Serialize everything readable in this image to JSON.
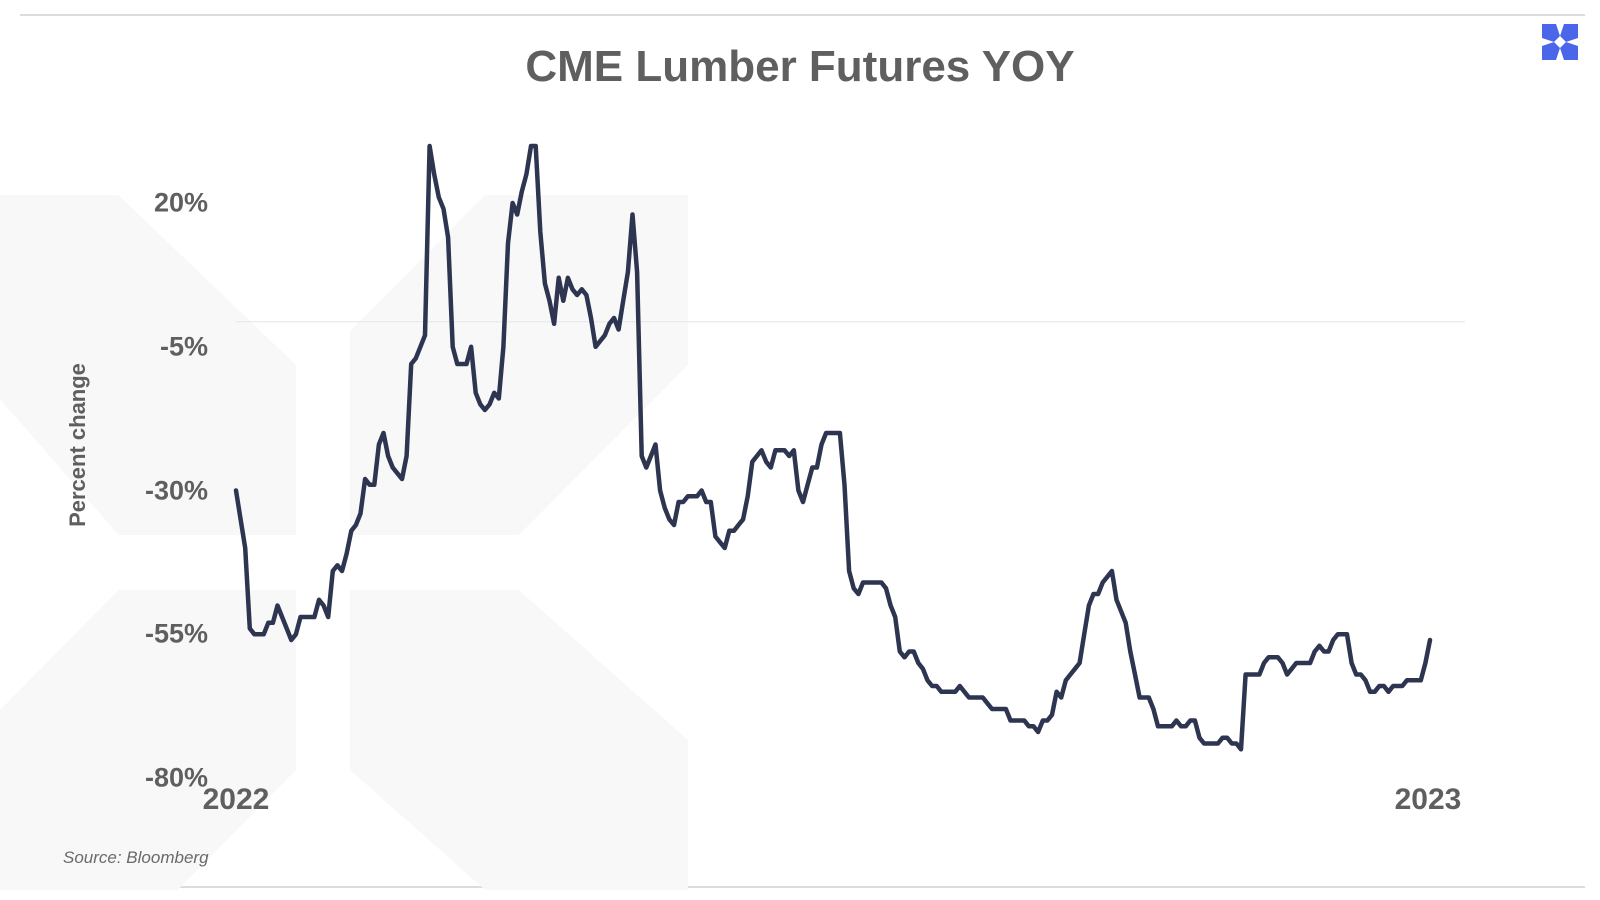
{
  "chart_data": {
    "type": "line",
    "title": "CME Lumber Futures YOY",
    "ylabel": "Percent change",
    "xlabel": "",
    "ylim": [
      -80,
      20
    ],
    "yticks": [
      20,
      -5,
      -30,
      -55,
      -80
    ],
    "ytick_labels": [
      "20%",
      "-5%",
      "-30%",
      "-55%",
      "-80%"
    ],
    "xticks": [
      "2022",
      "2023"
    ],
    "x_range": [
      "2022-01-01",
      "2023-01-01"
    ],
    "grid": "horizontal line at -5%",
    "legend": "none",
    "series": [
      {
        "color": "#2e3550",
        "values": [
          -30,
          -35,
          -40,
          -54,
          -55,
          -55,
          -55,
          -53,
          -53,
          -50,
          -52,
          -54,
          -56,
          -55,
          -52,
          -52,
          -52,
          -52,
          -49,
          -50,
          -52,
          -44,
          -43,
          -44,
          -41,
          -37,
          -36,
          -34,
          -28,
          -29,
          -29,
          -22,
          -20,
          -24,
          -26,
          -27,
          -28,
          -24,
          -8,
          -7,
          -5,
          -3,
          33,
          25,
          21,
          19,
          14,
          -5,
          -8,
          -8,
          -8,
          -5,
          -13,
          -15,
          -16,
          -15,
          -13,
          -14,
          -5,
          13,
          20,
          18,
          22,
          25,
          30,
          33,
          15,
          6,
          3,
          -1,
          7,
          3,
          7,
          5,
          4,
          5,
          4,
          0,
          -5,
          -4,
          -3,
          -1,
          0,
          -2,
          3,
          8,
          18,
          8,
          -24,
          -26,
          -24,
          -22,
          -30,
          -33,
          -35,
          -36,
          -32,
          -32,
          -31,
          -31,
          -31,
          -30,
          -32,
          -32,
          -38,
          -39,
          -40,
          -37,
          -37,
          -36,
          -35,
          -31,
          -25,
          -24,
          -23,
          -25,
          -26,
          -23,
          -23,
          -23,
          -24,
          -23,
          -30,
          -32,
          -29,
          -26,
          -26,
          -22,
          -20,
          -20,
          -20,
          -20,
          -29,
          -44,
          -47,
          -48,
          -46,
          -46,
          -46,
          -46,
          -46,
          -47,
          -50,
          -52,
          -58,
          -59,
          -58,
          -58,
          -60,
          -61,
          -63,
          -64,
          -64,
          -65,
          -65,
          -65,
          -65,
          -64,
          -65,
          -66,
          -66,
          -66,
          -66,
          -67,
          -68,
          -68,
          -68,
          -68,
          -70,
          -70,
          -70,
          -70,
          -71,
          -71,
          -72,
          -70,
          -70,
          -69,
          -65,
          -66,
          -63,
          -62,
          -61,
          -60,
          -55,
          -50,
          -48,
          -48,
          -46,
          -45,
          -44,
          -49,
          -51,
          -53,
          -58,
          -62,
          -66,
          -66,
          -66,
          -68,
          -71,
          -71,
          -71,
          -71,
          -70,
          -71,
          -71,
          -70,
          -70,
          -73,
          -74,
          -74,
          -74,
          -74,
          -73,
          -73,
          -74,
          -74,
          -75,
          -62,
          -62,
          -62,
          -62,
          -60,
          -59,
          -59,
          -59,
          -60,
          -62,
          -61,
          -60,
          -60,
          -60,
          -60,
          -58,
          -57,
          -58,
          -58,
          -56,
          -55,
          -55,
          -55,
          -60,
          -62,
          -62,
          -63,
          -65,
          -65,
          -64,
          -64,
          -65,
          -64,
          -64,
          -64,
          -63,
          -63,
          -63,
          -63,
          -60,
          -56
        ]
      }
    ]
  },
  "footer": {
    "source": "Source: Bloomberg"
  },
  "brand": {
    "logo_color": "#4b66e8",
    "line_color": "#2e3550",
    "text_color": "#5f5f5f"
  }
}
